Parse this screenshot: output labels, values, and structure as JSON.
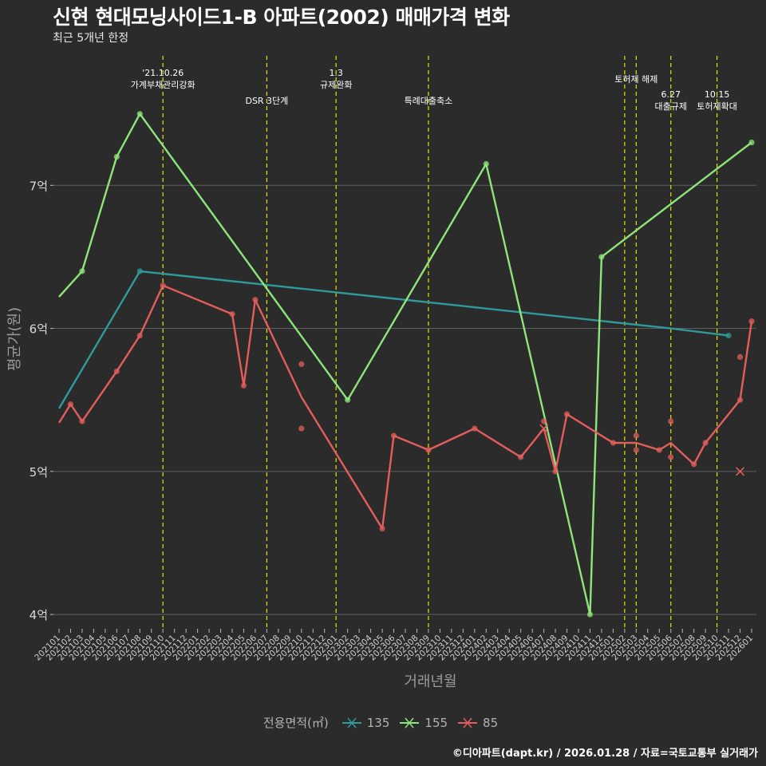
{
  "title": "신현 현대모닝사이드1-B 아파트(2002) 매매가격 변화",
  "subtitle": "최근 5개년 한정",
  "caption": "©디아파트(dapt.kr) / 2026.01.28 / 자료=국토교통부 실거래가",
  "colors": {
    "background": "#2b2b2b",
    "grid": "#5e5e5e",
    "event_line": "#e5e500",
    "s135": "#2f9a9a",
    "s155": "#8ee57a",
    "s85": "#e35d5d"
  },
  "legend": {
    "title": "전용면적(㎡)",
    "items": [
      "135",
      "155",
      "85"
    ]
  },
  "chart_data": {
    "type": "line",
    "title": "신현 현대모닝사이드1-B 아파트(2002) 매매가격 변화",
    "xlabel": "거래년월",
    "ylabel": "평균가(원)",
    "ylim": [
      3.9,
      7.95
    ],
    "yticks": [
      {
        "value": 4,
        "label": "4억"
      },
      {
        "value": 5,
        "label": "5억"
      },
      {
        "value": 6,
        "label": "6억"
      },
      {
        "value": 7,
        "label": "7억"
      }
    ],
    "x_categories": [
      "202101",
      "202102",
      "202103",
      "202104",
      "202105",
      "202106",
      "202107",
      "202108",
      "202109",
      "202110",
      "202111",
      "202112",
      "202201",
      "202202",
      "202203",
      "202204",
      "202205",
      "202206",
      "202207",
      "202208",
      "202209",
      "202210",
      "202211",
      "202212",
      "202301",
      "202302",
      "202303",
      "202304",
      "202305",
      "202306",
      "202307",
      "202308",
      "202309",
      "202310",
      "202311",
      "202312",
      "202401",
      "202402",
      "202403",
      "202404",
      "202405",
      "202406",
      "202407",
      "202408",
      "202409",
      "202410",
      "202411",
      "202412",
      "202501",
      "202502",
      "202503",
      "202504",
      "202505",
      "202506",
      "202507",
      "202508",
      "202509",
      "202510",
      "202511",
      "202512",
      "202601"
    ],
    "events": [
      {
        "x": "202110",
        "label": "'21.10.26\n가계부채관리강화",
        "row": 0
      },
      {
        "x": "202207",
        "label": "DSR 3단계",
        "row": 2
      },
      {
        "x": "202301",
        "label": "1.3\n규제완화",
        "row": 0
      },
      {
        "x": "202309",
        "label": "특례대출축소",
        "row": 2
      },
      {
        "x": "202502",
        "label": "",
        "row": 1
      },
      {
        "x": "202503",
        "label": "토허제 해제",
        "row": 1
      },
      {
        "x": "202506",
        "label": "6.27\n대출규제",
        "row": 2
      },
      {
        "x": "202510",
        "label": "10.15\n토허제확대",
        "row": 2
      }
    ],
    "series": [
      {
        "name": "135",
        "color_key": "s135",
        "line": [
          [
            "202101",
            5.44
          ],
          [
            "202108",
            6.4
          ],
          [
            "202506",
            6.0
          ],
          [
            "202511",
            5.95
          ]
        ],
        "points": [
          [
            "202108",
            6.4
          ],
          [
            "202511",
            5.95
          ]
        ],
        "cancelled": []
      },
      {
        "name": "155",
        "color_key": "s155",
        "line": [
          [
            "202101",
            6.22
          ],
          [
            "202103",
            6.4
          ],
          [
            "202106",
            7.2
          ],
          [
            "202108",
            7.5
          ],
          [
            "202302",
            5.5
          ],
          [
            "202402",
            7.15
          ],
          [
            "202411",
            4.0
          ],
          [
            "202412",
            6.5
          ],
          [
            "202601",
            7.3
          ]
        ],
        "points": [
          [
            "202103",
            6.4
          ],
          [
            "202106",
            7.2
          ],
          [
            "202108",
            7.5
          ],
          [
            "202302",
            5.5
          ],
          [
            "202402",
            7.15
          ],
          [
            "202411",
            4.0
          ],
          [
            "202412",
            6.5
          ],
          [
            "202601",
            7.3
          ]
        ],
        "cancelled": []
      },
      {
        "name": "85",
        "color_key": "s85",
        "line": [
          [
            "202101",
            5.34
          ],
          [
            "202102",
            5.47
          ],
          [
            "202103",
            5.35
          ],
          [
            "202106",
            5.7
          ],
          [
            "202108",
            5.95
          ],
          [
            "202110",
            6.3
          ],
          [
            "202204",
            6.1
          ],
          [
            "202205",
            5.6
          ],
          [
            "202206",
            6.2
          ],
          [
            "202210",
            5.52
          ],
          [
            "202305",
            4.6
          ],
          [
            "202306",
            5.25
          ],
          [
            "202309",
            5.15
          ],
          [
            "202401",
            5.3
          ],
          [
            "202405",
            5.1
          ],
          [
            "202407",
            5.3
          ],
          [
            "202408",
            5.0
          ],
          [
            "202409",
            5.4
          ],
          [
            "202501",
            5.2
          ],
          [
            "202503",
            5.2
          ],
          [
            "202505",
            5.15
          ],
          [
            "202506",
            5.2
          ],
          [
            "202508",
            5.05
          ],
          [
            "202509",
            5.2
          ],
          [
            "202512",
            5.5
          ],
          [
            "202601",
            6.05
          ]
        ],
        "points": [
          [
            "202102",
            5.47
          ],
          [
            "202103",
            5.35
          ],
          [
            "202106",
            5.7
          ],
          [
            "202108",
            5.95
          ],
          [
            "202110",
            6.3
          ],
          [
            "202204",
            6.1
          ],
          [
            "202205",
            5.6
          ],
          [
            "202206",
            6.2
          ],
          [
            "202210",
            5.75
          ],
          [
            "202210",
            5.3
          ],
          [
            "202305",
            4.6
          ],
          [
            "202306",
            5.25
          ],
          [
            "202309",
            5.15
          ],
          [
            "202401",
            5.3
          ],
          [
            "202405",
            5.1
          ],
          [
            "202407",
            5.35
          ],
          [
            "202408",
            5.0
          ],
          [
            "202409",
            5.4
          ],
          [
            "202501",
            5.2
          ],
          [
            "202503",
            5.25
          ],
          [
            "202503",
            5.15
          ],
          [
            "202505",
            5.15
          ],
          [
            "202506",
            5.35
          ],
          [
            "202506",
            5.1
          ],
          [
            "202508",
            5.05
          ],
          [
            "202509",
            5.2
          ],
          [
            "202512",
            5.8
          ],
          [
            "202512",
            5.5
          ],
          [
            "202601",
            6.05
          ]
        ],
        "cancelled": [
          [
            "202407",
            5.3
          ],
          [
            "202512",
            5.0
          ]
        ]
      }
    ]
  }
}
